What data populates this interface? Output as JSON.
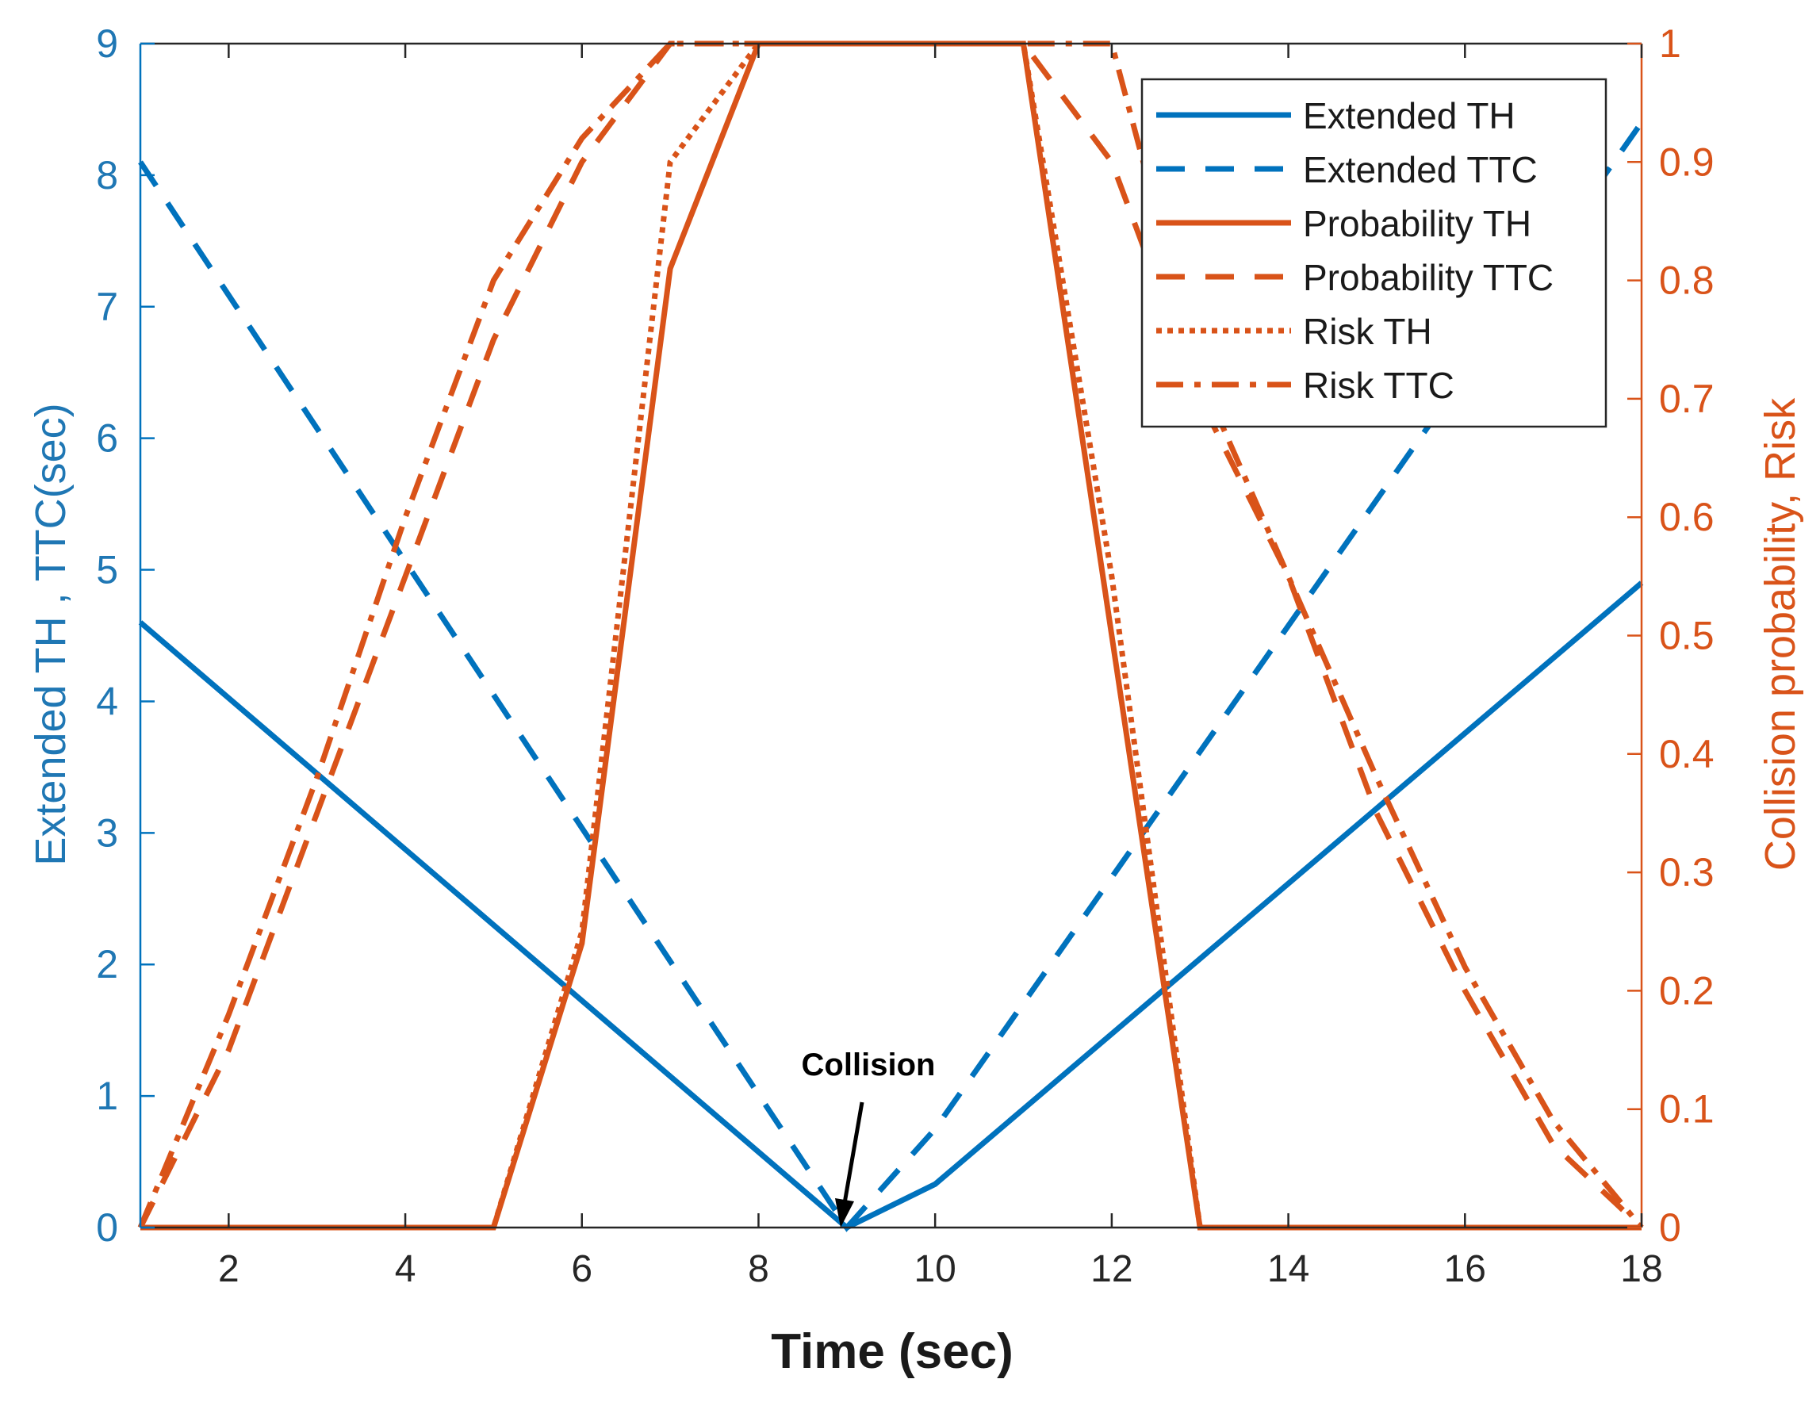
{
  "chart_data": {
    "type": "line",
    "xlabel": "Time (sec)",
    "ylabel_left": "Extended TH , TTC(sec)",
    "ylabel_right": "Collision probability, Risk",
    "xlim": [
      1,
      18
    ],
    "ylim_left": [
      0,
      9
    ],
    "ylim_right": [
      0,
      1
    ],
    "xticks": [
      2,
      4,
      6,
      8,
      10,
      12,
      14,
      16,
      18
    ],
    "yticks_left": [
      0,
      1,
      2,
      3,
      4,
      5,
      6,
      7,
      8,
      9
    ],
    "yticks_right": [
      "0",
      "0.1",
      "0.2",
      "0.3",
      "0.4",
      "0.5",
      "0.6",
      "0.7",
      "0.8",
      "0.9",
      "1"
    ],
    "grid": false,
    "legend_position": "top-right",
    "colors": {
      "blue": "#0072BD",
      "orange": "#D95319",
      "axis": "#262626"
    },
    "annotation": {
      "text": "Collision",
      "x": 9,
      "y": 0
    },
    "series": [
      {
        "name": "Extended TH",
        "axis": "left",
        "color": "#0072BD",
        "style": "solid",
        "x": [
          1,
          9,
          10,
          18
        ],
        "y": [
          4.6,
          0,
          0.33,
          4.9
        ]
      },
      {
        "name": "Extended TTC",
        "axis": "left",
        "color": "#0072BD",
        "style": "dashed",
        "x": [
          1,
          9,
          10,
          18
        ],
        "y": [
          8.1,
          0,
          0.75,
          8.4
        ]
      },
      {
        "name": "Probability TH",
        "axis": "right",
        "color": "#D95319",
        "style": "solid",
        "x": [
          1,
          5,
          6,
          7,
          8,
          11,
          12,
          13,
          18
        ],
        "y": [
          0,
          0,
          0.24,
          0.81,
          1,
          1,
          0.5,
          0,
          0
        ]
      },
      {
        "name": "Probability TTC",
        "axis": "right",
        "color": "#D95319",
        "style": "dashed",
        "x": [
          1,
          2,
          3,
          4,
          5,
          6,
          7,
          11,
          12,
          13,
          14,
          15,
          16,
          17,
          18
        ],
        "y": [
          0,
          0.15,
          0.35,
          0.55,
          0.75,
          0.9,
          1,
          1,
          0.9,
          0.7,
          0.55,
          0.35,
          0.2,
          0.07,
          0
        ]
      },
      {
        "name": "Risk TH",
        "axis": "right",
        "color": "#D95319",
        "style": "dotted",
        "x": [
          1,
          5,
          6,
          7,
          8,
          11,
          12,
          13,
          18
        ],
        "y": [
          0,
          0,
          0.25,
          0.9,
          1,
          1,
          0.55,
          0,
          0
        ]
      },
      {
        "name": "Risk TTC",
        "axis": "right",
        "color": "#D95319",
        "style": "dashdot",
        "x": [
          1,
          2,
          3,
          4,
          5,
          6,
          7,
          11,
          12,
          13,
          14,
          15,
          16,
          17,
          18
        ],
        "y": [
          0,
          0.18,
          0.38,
          0.6,
          0.8,
          0.92,
          1,
          1,
          1,
          0.72,
          0.55,
          0.38,
          0.22,
          0.09,
          0
        ]
      }
    ]
  }
}
